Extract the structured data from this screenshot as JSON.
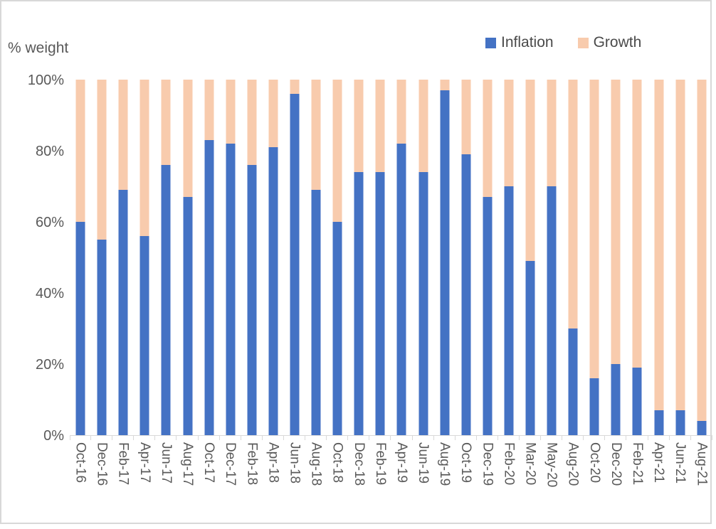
{
  "chart_data": {
    "type": "bar",
    "stacked": true,
    "percent_stacked": true,
    "ylabel": "% weight",
    "categories": [
      "Oct-16",
      "Dec-16",
      "Feb-17",
      "Apr-17",
      "Jun-17",
      "Aug-17",
      "Oct-17",
      "Dec-17",
      "Feb-18",
      "Apr-18",
      "Jun-18",
      "Aug-18",
      "Oct-18",
      "Dec-18",
      "Feb-19",
      "Apr-19",
      "Jun-19",
      "Aug-19",
      "Oct-19",
      "Dec-19",
      "Feb-20",
      "Mar-20",
      "May-20",
      "Aug-20",
      "Oct-20",
      "Dec-20",
      "Feb-21",
      "Apr-21",
      "Jun-21",
      "Aug-21"
    ],
    "series": [
      {
        "name": "Inflation",
        "color": "#4472C4",
        "values": [
          60,
          55,
          69,
          56,
          76,
          67,
          83,
          82,
          76,
          81,
          96,
          69,
          60,
          74,
          74,
          82,
          74,
          97,
          79,
          67,
          70,
          49,
          70,
          30,
          16,
          20,
          19,
          7,
          7,
          4
        ]
      },
      {
        "name": "Growth",
        "color": "#F8CBAD",
        "values": [
          40,
          45,
          31,
          44,
          24,
          33,
          17,
          18,
          24,
          19,
          4,
          31,
          40,
          26,
          26,
          18,
          26,
          3,
          21,
          33,
          30,
          51,
          30,
          70,
          84,
          80,
          81,
          93,
          93,
          96
        ]
      }
    ],
    "ylim": [
      0,
      100
    ],
    "yticks": [
      "0%",
      "20%",
      "40%",
      "60%",
      "80%",
      "100%"
    ],
    "ytick_step_percent": 20,
    "grid": false,
    "legend_position": "top-right",
    "axis_color": "#D9D9D9",
    "text_color": "#595959",
    "frame_border_color": "#D8D8D8"
  }
}
